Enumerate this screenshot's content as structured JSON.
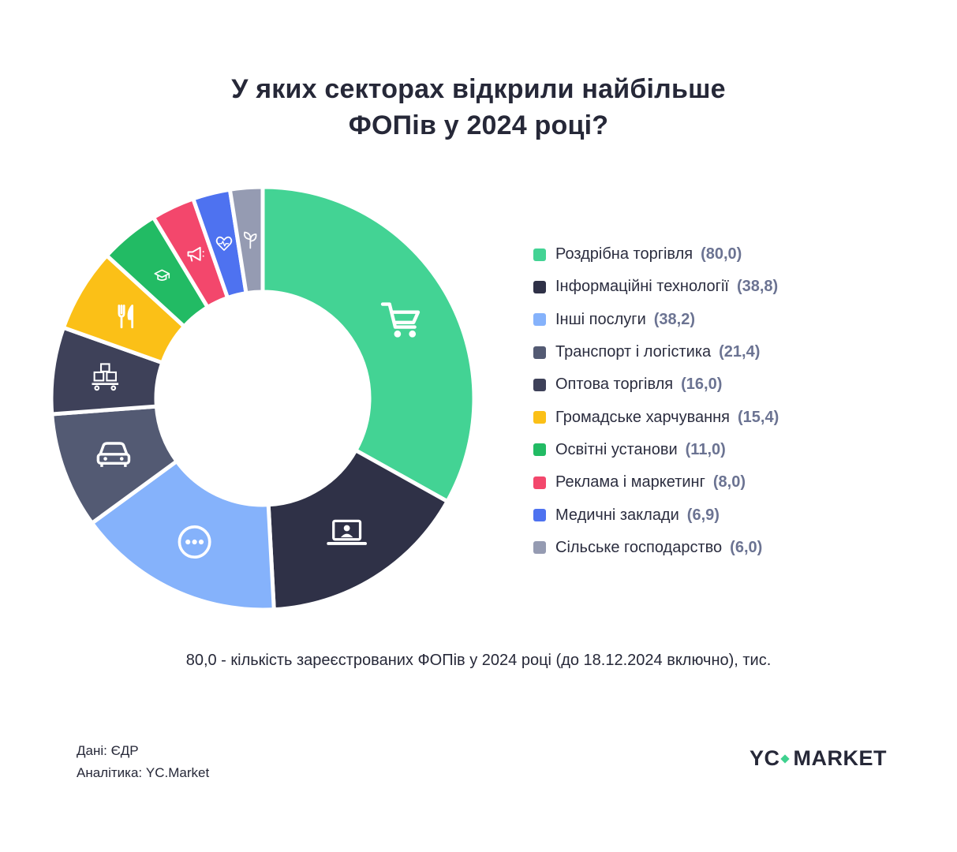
{
  "title": {
    "line1": "У яких секторах відкрили найбільше",
    "line2": "ФОПів у 2024 році?"
  },
  "chart_data": {
    "type": "pie",
    "variant": "donut",
    "start": "top, clockwise",
    "legend_position": "right",
    "categories": [
      "Роздрібна торгівля",
      "Інформаційні технології",
      "Інші послуги",
      "Транспорт і логістика",
      "Оптова торгівля",
      "Громадське харчування",
      "Освітні установи",
      "Реклама і маркетинг",
      "Медичні заклади",
      "Сільське господарство"
    ],
    "values": [
      80.0,
      38.8,
      38.2,
      21.4,
      16.0,
      15.4,
      11.0,
      8.0,
      6.9,
      6.0
    ],
    "value_labels": [
      "(80,0)",
      "(38,8)",
      "(38,2)",
      "(21,4)",
      "(16,0)",
      "(15,4)",
      "(11,0)",
      "(8,0)",
      "(6,9)",
      "(6,0)"
    ],
    "colors": [
      "#43d394",
      "#2f3147",
      "#85b2fb",
      "#535a73",
      "#3e4159",
      "#fbc017",
      "#22bb64",
      "#f3476c",
      "#4e72f0",
      "#959bb2"
    ],
    "icons": [
      "cart-icon",
      "laptop-user-icon",
      "more-dots-icon",
      "car-icon",
      "boxes-icon",
      "cutlery-icon",
      "graduation-cap-icon",
      "megaphone-icon",
      "heart-pulse-icon",
      "sprout-icon"
    ]
  },
  "footnote": "80,0 - кількість зареєстрованих ФОПів у 2024 році (до 18.12.2024 включно), тис.",
  "source": {
    "data": "Дані: ЄДР",
    "analytics": "Аналітика: YC.Market"
  },
  "logo": {
    "left": "YC",
    "right": "MARKET"
  }
}
